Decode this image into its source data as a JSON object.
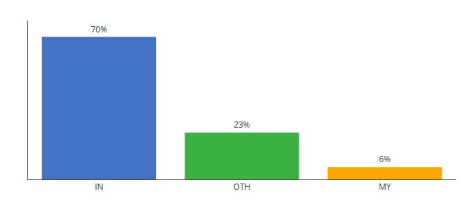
{
  "chart_data": {
    "type": "bar",
    "categories": [
      "IN",
      "OTH",
      "MY"
    ],
    "values": [
      70,
      23,
      6
    ],
    "value_labels": [
      "70%",
      "23%",
      "6%"
    ],
    "data_labels": true,
    "colors": [
      "#4472C4",
      "#3CB043",
      "#FFA500"
    ],
    "ylim": [
      0,
      78
    ],
    "grid": false,
    "tick_labels": "x"
  }
}
